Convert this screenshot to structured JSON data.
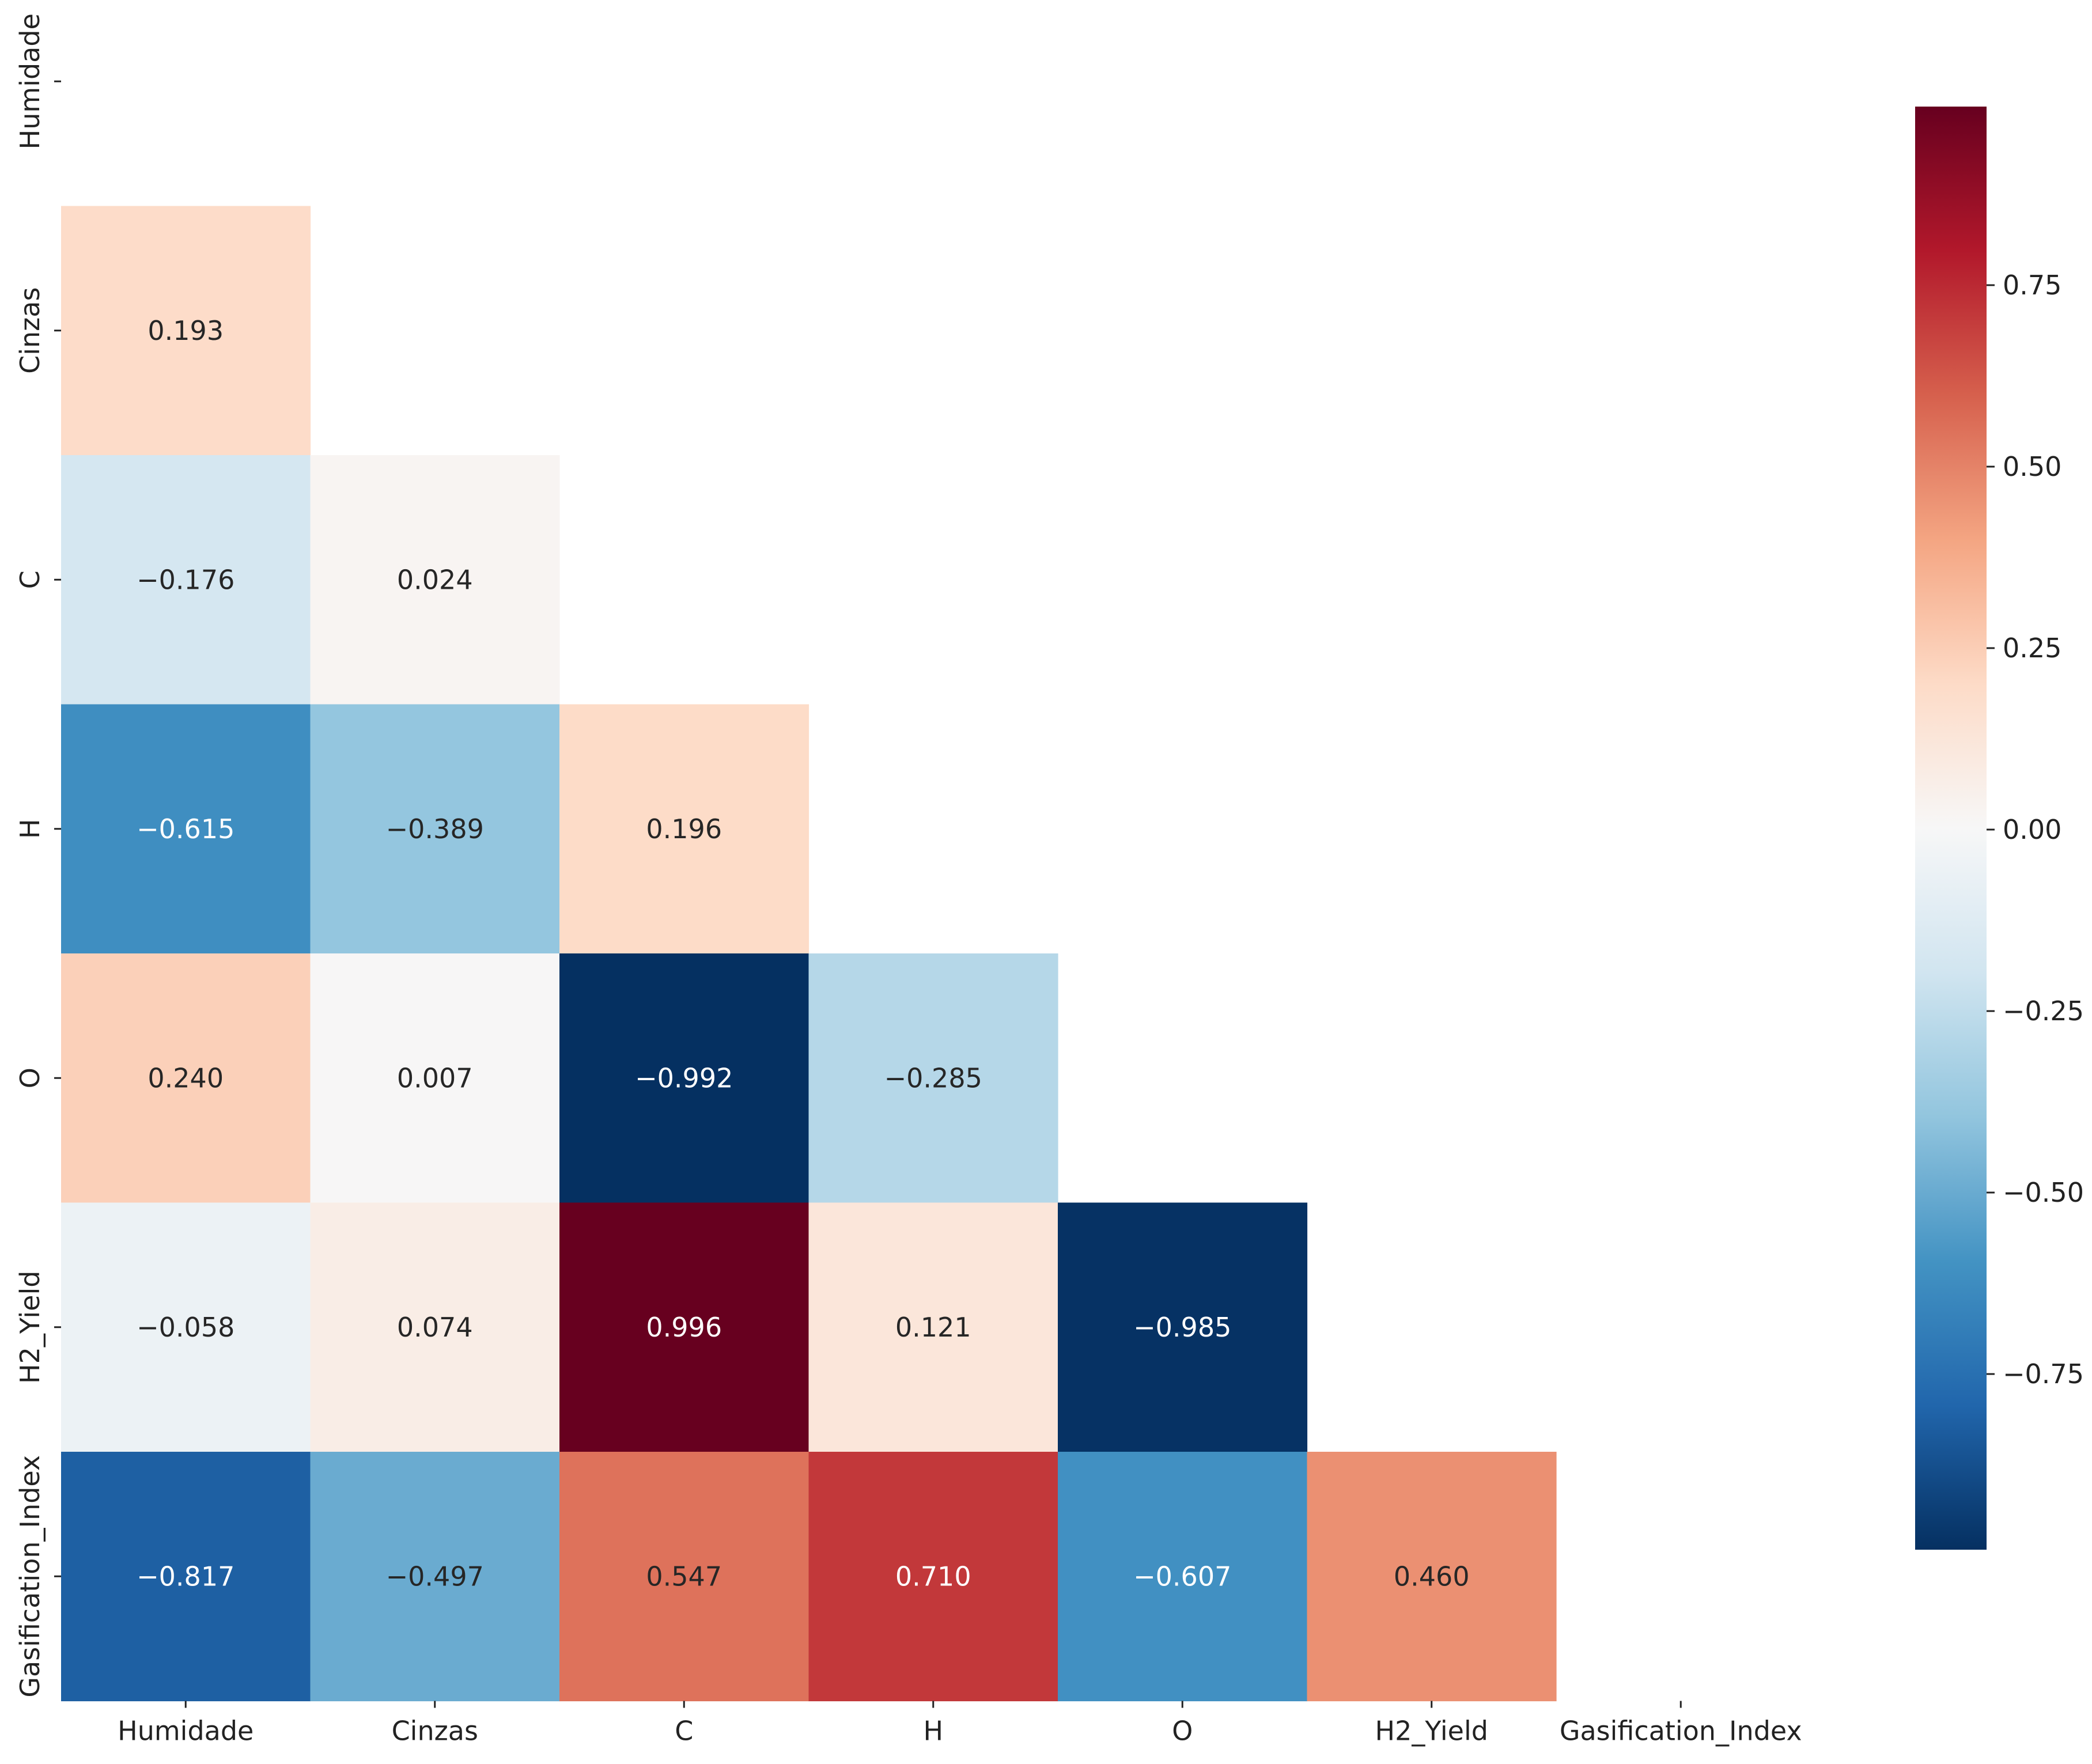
{
  "chart_data": {
    "type": "heatmap",
    "title": "",
    "variables": [
      "Humidade",
      "Cinzas",
      "C",
      "H",
      "O",
      "H2_Yield",
      "Gasification_Index"
    ],
    "x_tick_labels": [
      "Humidade",
      "Cinzas",
      "C",
      "H",
      "O",
      "H2_Yield",
      "Gasification_Index"
    ],
    "y_tick_labels": [
      "Humidade",
      "Cinzas",
      "C",
      "H",
      "O",
      "H2_Yield",
      "Gasification_Index"
    ],
    "mask": "upper triangle including diagonal",
    "cells": [
      {
        "row": 1,
        "col": 0,
        "value": 0.193,
        "label": "0.193"
      },
      {
        "row": 2,
        "col": 0,
        "value": -0.176,
        "label": "−0.176"
      },
      {
        "row": 2,
        "col": 1,
        "value": 0.024,
        "label": "0.024"
      },
      {
        "row": 3,
        "col": 0,
        "value": -0.615,
        "label": "−0.615"
      },
      {
        "row": 3,
        "col": 1,
        "value": -0.389,
        "label": "−0.389"
      },
      {
        "row": 3,
        "col": 2,
        "value": 0.196,
        "label": "0.196"
      },
      {
        "row": 4,
        "col": 0,
        "value": 0.24,
        "label": "0.240"
      },
      {
        "row": 4,
        "col": 1,
        "value": 0.007,
        "label": "0.007"
      },
      {
        "row": 4,
        "col": 2,
        "value": -0.992,
        "label": "−0.992"
      },
      {
        "row": 4,
        "col": 3,
        "value": -0.285,
        "label": "−0.285"
      },
      {
        "row": 5,
        "col": 0,
        "value": -0.058,
        "label": "−0.058"
      },
      {
        "row": 5,
        "col": 1,
        "value": 0.074,
        "label": "0.074"
      },
      {
        "row": 5,
        "col": 2,
        "value": 0.996,
        "label": "0.996"
      },
      {
        "row": 5,
        "col": 3,
        "value": 0.121,
        "label": "0.121"
      },
      {
        "row": 5,
        "col": 4,
        "value": -0.985,
        "label": "−0.985"
      },
      {
        "row": 6,
        "col": 0,
        "value": -0.817,
        "label": "−0.817"
      },
      {
        "row": 6,
        "col": 1,
        "value": -0.497,
        "label": "−0.497"
      },
      {
        "row": 6,
        "col": 2,
        "value": 0.547,
        "label": "0.547"
      },
      {
        "row": 6,
        "col": 3,
        "value": 0.71,
        "label": "0.710"
      },
      {
        "row": 6,
        "col": 4,
        "value": -0.607,
        "label": "−0.607"
      },
      {
        "row": 6,
        "col": 5,
        "value": 0.46,
        "label": "0.460"
      }
    ],
    "colormap": "RdBu_r",
    "colorbar": {
      "vmin": -0.992,
      "vmax": 0.996,
      "ticks": [
        -0.75,
        -0.5,
        -0.25,
        0.0,
        0.25,
        0.5,
        0.75
      ],
      "tick_labels": [
        "−0.75",
        "−0.50",
        "−0.25",
        "0.00",
        "0.25",
        "0.50",
        "0.75"
      ]
    }
  }
}
